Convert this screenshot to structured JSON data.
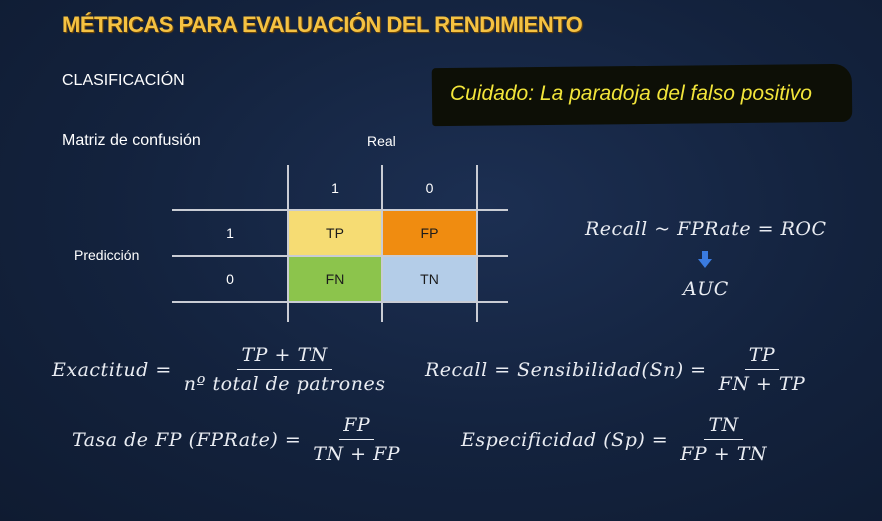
{
  "title": "MÉTRICAS PARA EVALUACIÓN DEL RENDIMIENTO",
  "section": "CLASIFICACIÓN",
  "callout": "Cuidado: La paradoja del falso positivo",
  "matrix": {
    "label": "Matriz de confusión",
    "real_label": "Real",
    "pred_label": "Predicción",
    "col_headers": [
      "1",
      "0"
    ],
    "row_headers": [
      "1",
      "0"
    ],
    "cells": {
      "tp": {
        "text": "TP",
        "color": "#f6dc73"
      },
      "fp": {
        "text": "FP",
        "color": "#f08c10"
      },
      "fn": {
        "text": "FN",
        "color": "#8cc44c"
      },
      "tn": {
        "text": "TN",
        "color": "#b4cde8"
      }
    }
  },
  "roc": {
    "line1": "Recall ~ FPRate = ROC",
    "line2": "AUC",
    "arrow_icon": "down-arrow-icon",
    "arrow_color": "#3a7be0"
  },
  "formulas": {
    "accuracy": {
      "lhs": "Exactitud =",
      "num": "TP + TN",
      "den": "nº total de patrones"
    },
    "recall": {
      "lhs": "Recall = Sensibilidad(Sn) =",
      "num": "TP",
      "den": "FN + TP"
    },
    "fprate": {
      "lhs": "Tasa de FP (FPRate) =",
      "num": "FP",
      "den": "TN + FP"
    },
    "specificity": {
      "lhs": "Especificidad (Sp) =",
      "num": "TN",
      "den": "FP + TN"
    }
  }
}
